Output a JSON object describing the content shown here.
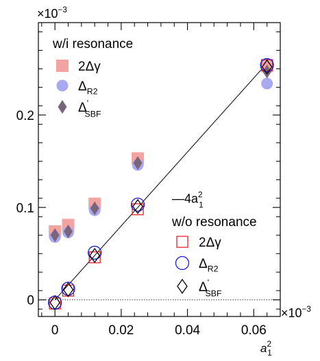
{
  "chart_data": {
    "type": "scatter",
    "title": "",
    "xlabel": "a",
    "xlabel_sup": "2",
    "xlabel_sub": "1",
    "ylabel": "",
    "x_multiplier": "×10",
    "x_multiplier_exp": "−3",
    "y_multiplier": "×10",
    "y_multiplier_exp": "−3",
    "xlim": [
      -0.005,
      0.068
    ],
    "ylim": [
      -0.018,
      0.3
    ],
    "xticks": [
      0,
      0.02,
      0.04,
      0.06
    ],
    "xtick_labels": [
      "0",
      "0.02",
      "0.04",
      "0.06"
    ],
    "yticks": [
      0,
      0.1,
      0.2
    ],
    "ytick_labels": [
      "0",
      "0.1",
      "0.2"
    ],
    "zero_reference_line": true,
    "fit_line": {
      "label": "—4a",
      "label_sup": "2",
      "label_sub": "1",
      "slope": 4,
      "x_range": [
        0,
        0.064
      ]
    },
    "groups": [
      {
        "title": "w/i resonance",
        "series": [
          {
            "name": "2Δγ",
            "marker": "filled-square",
            "color": "#f4a3a3",
            "x": [
              0,
              0.004,
              0.012,
              0.025,
              0.064
            ],
            "y": [
              0.074,
              0.081,
              0.104,
              0.153,
              0.253
            ]
          },
          {
            "name": "Δ",
            "name_sub": "R2",
            "marker": "filled-circle",
            "color": "#a9a9f2",
            "x": [
              0,
              0.004,
              0.012,
              0.025,
              0.064
            ],
            "y": [
              0.068,
              0.073,
              0.097,
              0.146,
              0.234
            ]
          },
          {
            "name": "Δ",
            "name_sup": "'",
            "name_sub": "SBF",
            "marker": "filled-diamond",
            "color": "#7a6478",
            "x": [
              0,
              0.004,
              0.012,
              0.025,
              0.064
            ],
            "y": [
              0.07,
              0.074,
              0.099,
              0.148,
              0.247
            ]
          }
        ]
      },
      {
        "title": "w/o resonance",
        "series": [
          {
            "name": "2Δγ",
            "marker": "open-square",
            "color": "#e8202a",
            "x": [
              0,
              0.004,
              0.012,
              0.025,
              0.064
            ],
            "y": [
              -0.004,
              0.01,
              0.046,
              0.098,
              0.254
            ]
          },
          {
            "name": "Δ",
            "name_sub": "R2",
            "marker": "open-circle",
            "color": "#1a1ad6",
            "x": [
              0,
              0.004,
              0.012,
              0.025,
              0.064
            ],
            "y": [
              -0.003,
              0.012,
              0.051,
              0.103,
              0.254
            ]
          },
          {
            "name": "Δ",
            "name_sup": "'",
            "name_sub": "SBF",
            "marker": "open-diamond",
            "color": "#000000",
            "x": [
              0,
              0.004,
              0.012,
              0.025,
              0.064
            ],
            "y": [
              -0.003,
              0.011,
              0.048,
              0.101,
              0.252
            ]
          }
        ]
      }
    ]
  }
}
